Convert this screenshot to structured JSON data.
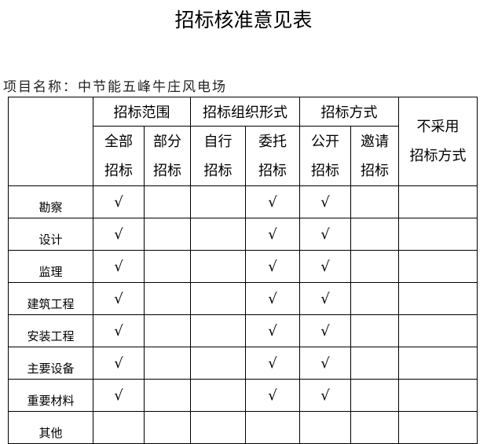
{
  "title": "招标核准意见表",
  "project": "项目名称：中节能五峰牛庄风电场",
  "groups": [
    "招标范围",
    "招标组织形式",
    "招标方式",
    "不采用招标方式"
  ],
  "subcols": [
    [
      "全部",
      "招标"
    ],
    [
      "部分",
      "招标"
    ],
    [
      "自行",
      "招标"
    ],
    [
      "委托",
      "招标"
    ],
    [
      "公开",
      "招标"
    ],
    [
      "邀请",
      "招标"
    ]
  ],
  "no_bid_lines": [
    "不采用",
    "招标方式"
  ],
  "check_mark": "√",
  "rows": [
    {
      "label": "勘察",
      "checks": [
        true,
        false,
        false,
        true,
        true,
        false,
        false
      ]
    },
    {
      "label": "设计",
      "checks": [
        true,
        false,
        false,
        true,
        true,
        false,
        false
      ]
    },
    {
      "label": "监理",
      "checks": [
        true,
        false,
        false,
        true,
        true,
        false,
        false
      ]
    },
    {
      "label": "建筑工程",
      "checks": [
        true,
        false,
        false,
        true,
        true,
        false,
        false
      ]
    },
    {
      "label": "安装工程",
      "checks": [
        true,
        false,
        false,
        true,
        true,
        false,
        false
      ]
    },
    {
      "label": "主要设备",
      "checks": [
        true,
        false,
        false,
        true,
        true,
        false,
        false
      ]
    },
    {
      "label": "重要材料",
      "checks": [
        true,
        false,
        false,
        true,
        true,
        false,
        false
      ]
    },
    {
      "label": "其他",
      "checks": [
        false,
        false,
        false,
        false,
        false,
        false,
        false
      ]
    }
  ]
}
